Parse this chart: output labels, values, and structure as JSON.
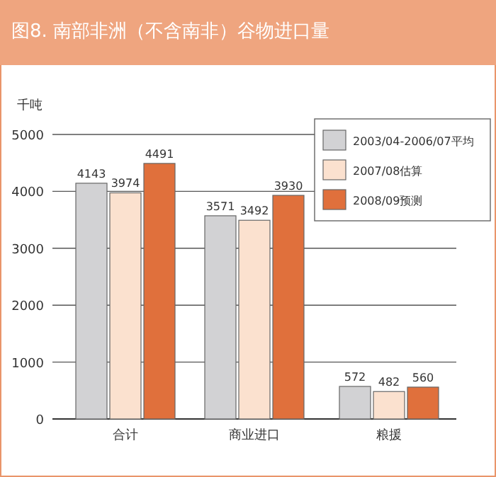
{
  "chart_data": {
    "type": "bar",
    "title": "图8. 南部非洲（不含南非）谷物进口量",
    "ylabel": "千吨",
    "categories": [
      "合计",
      "商业进口",
      "粮援"
    ],
    "series": [
      {
        "name": "2003/04-2006/07平均",
        "color": "#d2d2d4",
        "values": [
          4143,
          3571,
          572
        ]
      },
      {
        "name": "2007/08估算",
        "color": "#fbe1cf",
        "values": [
          3974,
          3492,
          482
        ]
      },
      {
        "name": "2008/09预测",
        "color": "#e0703c",
        "values": [
          4491,
          3930,
          560
        ]
      }
    ],
    "ylim": [
      0,
      5000
    ],
    "yticks": [
      0,
      1000,
      2000,
      3000,
      4000,
      5000
    ],
    "grid": "y",
    "legend": "top right",
    "data_labels": true
  }
}
